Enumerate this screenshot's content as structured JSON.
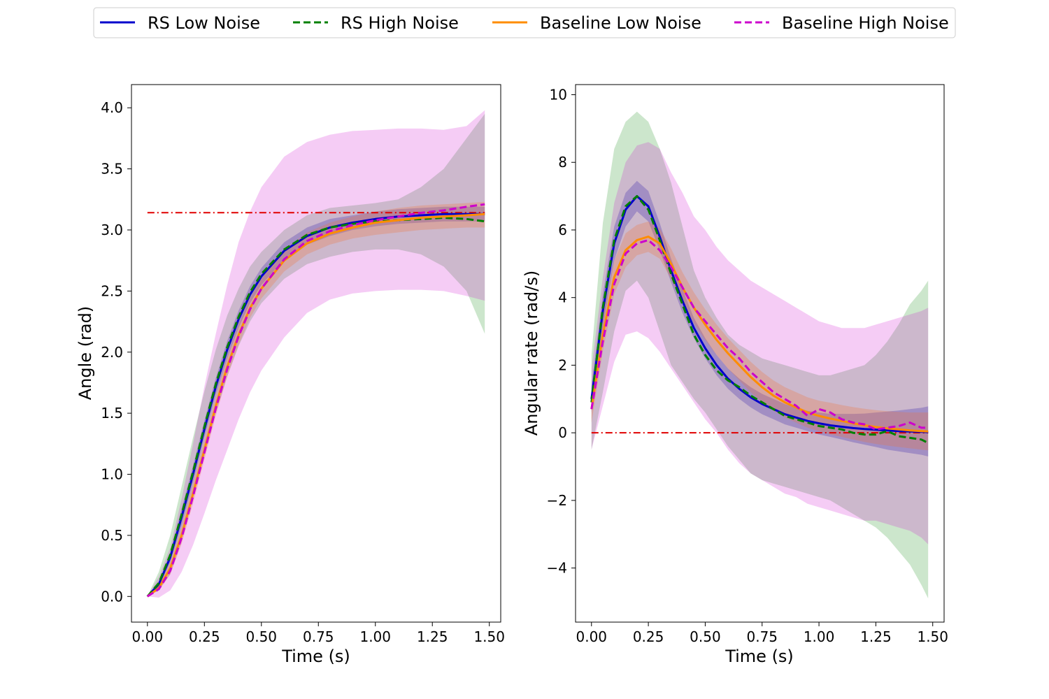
{
  "legend": {
    "placement": "top-center",
    "entries": [
      {
        "name": "RS Low Noise",
        "color": "#0000cc",
        "style": "solid"
      },
      {
        "name": "RS High Noise",
        "color": "#008000",
        "style": "dashed"
      },
      {
        "name": "Baseline Low Noise",
        "color": "#ff8c00",
        "style": "solid"
      },
      {
        "name": "Baseline High Noise",
        "color": "#cc00cc",
        "style": "dashed"
      }
    ]
  },
  "chart_data": [
    {
      "type": "line",
      "xlabel": "Time (s)",
      "ylabel": "Angle (rad)",
      "xlim": [
        -0.07,
        1.55
      ],
      "ylim": [
        -0.21,
        4.19
      ],
      "xticks": [
        0.0,
        0.25,
        0.5,
        0.75,
        1.0,
        1.25,
        1.5
      ],
      "xtick_labels": [
        "0.00",
        "0.25",
        "0.50",
        "0.75",
        "1.00",
        "1.25",
        "1.50"
      ],
      "yticks": [
        0.0,
        0.5,
        1.0,
        1.5,
        2.0,
        2.5,
        3.0,
        3.5,
        4.0
      ],
      "ytick_labels": [
        "0.0",
        "0.5",
        "1.0",
        "1.5",
        "2.0",
        "2.5",
        "3.0",
        "3.5",
        "4.0"
      ],
      "grid": false,
      "reference": {
        "y": 3.14159,
        "color": "#e00000",
        "style": "dashdot"
      },
      "x": [
        0.0,
        0.05,
        0.1,
        0.15,
        0.2,
        0.25,
        0.3,
        0.35,
        0.4,
        0.45,
        0.5,
        0.6,
        0.7,
        0.8,
        0.9,
        1.0,
        1.1,
        1.2,
        1.3,
        1.4,
        1.48
      ],
      "series": [
        {
          "name": "RS Low Noise",
          "color": "#0000cc",
          "style": "solid",
          "values": [
            0.0,
            0.1,
            0.32,
            0.65,
            1.0,
            1.37,
            1.72,
            2.02,
            2.27,
            2.47,
            2.62,
            2.83,
            2.95,
            3.02,
            3.06,
            3.09,
            3.11,
            3.12,
            3.13,
            3.13,
            3.13
          ],
          "band": {
            "color": "#0000cc",
            "alpha": 0.25,
            "lower": [
              0.0,
              0.08,
              0.28,
              0.58,
              0.93,
              1.3,
              1.65,
              1.95,
              2.2,
              2.4,
              2.55,
              2.76,
              2.88,
              2.95,
              3.0,
              3.03,
              3.05,
              3.06,
              3.07,
              3.07,
              3.07
            ],
            "upper": [
              0.0,
              0.12,
              0.36,
              0.72,
              1.07,
              1.44,
              1.79,
              2.09,
              2.34,
              2.54,
              2.69,
              2.9,
              3.02,
              3.09,
              3.12,
              3.15,
              3.17,
              3.18,
              3.19,
              3.19,
              3.19
            ]
          }
        },
        {
          "name": "RS High Noise",
          "color": "#008000",
          "style": "dashed",
          "values": [
            0.0,
            0.11,
            0.34,
            0.67,
            1.02,
            1.39,
            1.74,
            2.04,
            2.29,
            2.49,
            2.64,
            2.84,
            2.96,
            3.02,
            3.05,
            3.07,
            3.08,
            3.09,
            3.1,
            3.09,
            3.07
          ],
          "band": {
            "color": "#008000",
            "alpha": 0.2,
            "lower": [
              0.0,
              0.05,
              0.18,
              0.45,
              0.8,
              1.15,
              1.5,
              1.8,
              2.05,
              2.25,
              2.4,
              2.6,
              2.72,
              2.78,
              2.82,
              2.84,
              2.84,
              2.8,
              2.7,
              2.5,
              2.15
            ],
            "upper": [
              0.0,
              0.2,
              0.5,
              0.9,
              1.3,
              1.68,
              2.02,
              2.3,
              2.52,
              2.7,
              2.82,
              3.0,
              3.12,
              3.18,
              3.2,
              3.22,
              3.25,
              3.35,
              3.5,
              3.75,
              3.95
            ]
          }
        },
        {
          "name": "Baseline Low Noise",
          "color": "#ff8c00",
          "style": "solid",
          "values": [
            0.0,
            0.07,
            0.23,
            0.5,
            0.84,
            1.2,
            1.56,
            1.88,
            2.14,
            2.36,
            2.52,
            2.75,
            2.89,
            2.97,
            3.02,
            3.06,
            3.08,
            3.1,
            3.11,
            3.12,
            3.13
          ],
          "band": {
            "color": "#ff8c00",
            "alpha": 0.25,
            "lower": [
              0.0,
              0.05,
              0.18,
              0.43,
              0.76,
              1.12,
              1.48,
              1.8,
              2.06,
              2.28,
              2.44,
              2.66,
              2.8,
              2.88,
              2.93,
              2.96,
              2.98,
              3.0,
              3.01,
              3.02,
              3.02
            ],
            "upper": [
              0.0,
              0.09,
              0.28,
              0.57,
              0.92,
              1.28,
              1.64,
              1.96,
              2.22,
              2.44,
              2.6,
              2.84,
              2.98,
              3.06,
              3.11,
              3.15,
              3.18,
              3.2,
              3.21,
              3.22,
              3.23
            ]
          }
        },
        {
          "name": "Baseline High Noise",
          "color": "#cc00cc",
          "style": "dashed",
          "values": [
            0.0,
            0.06,
            0.21,
            0.48,
            0.82,
            1.18,
            1.54,
            1.86,
            2.13,
            2.35,
            2.52,
            2.76,
            2.91,
            2.99,
            3.04,
            3.08,
            3.11,
            3.14,
            3.16,
            3.19,
            3.21
          ],
          "band": {
            "color": "#cc00cc",
            "alpha": 0.2,
            "lower": [
              0.0,
              -0.01,
              0.05,
              0.2,
              0.42,
              0.68,
              0.95,
              1.2,
              1.45,
              1.67,
              1.85,
              2.12,
              2.32,
              2.43,
              2.48,
              2.5,
              2.51,
              2.51,
              2.5,
              2.46,
              2.42
            ],
            "upper": [
              0.0,
              0.16,
              0.4,
              0.8,
              1.25,
              1.72,
              2.15,
              2.55,
              2.9,
              3.15,
              3.35,
              3.6,
              3.72,
              3.78,
              3.81,
              3.82,
              3.83,
              3.83,
              3.82,
              3.85,
              3.98
            ]
          }
        }
      ]
    },
    {
      "type": "line",
      "xlabel": "Time (s)",
      "ylabel": "Angular rate (rad/s)",
      "xlim": [
        -0.07,
        1.55
      ],
      "ylim": [
        -5.6,
        10.3
      ],
      "xticks": [
        0.0,
        0.25,
        0.5,
        0.75,
        1.0,
        1.25,
        1.5
      ],
      "xtick_labels": [
        "0.00",
        "0.25",
        "0.50",
        "0.75",
        "1.00",
        "1.25",
        "1.50"
      ],
      "yticks": [
        -4,
        -2,
        0,
        2,
        4,
        6,
        8,
        10
      ],
      "ytick_labels": [
        "−4",
        "−2",
        "0",
        "2",
        "4",
        "6",
        "8",
        "10"
      ],
      "grid": false,
      "reference": {
        "y": 0,
        "color": "#e00000",
        "style": "dashdot"
      },
      "x": [
        0.0,
        0.05,
        0.1,
        0.15,
        0.2,
        0.25,
        0.3,
        0.35,
        0.4,
        0.45,
        0.5,
        0.55,
        0.6,
        0.65,
        0.7,
        0.75,
        0.8,
        0.85,
        0.9,
        0.95,
        1.0,
        1.05,
        1.1,
        1.15,
        1.2,
        1.25,
        1.3,
        1.35,
        1.4,
        1.45,
        1.48
      ],
      "series": [
        {
          "name": "RS Low Noise",
          "color": "#0000cc",
          "style": "solid",
          "values": [
            1.0,
            3.6,
            5.6,
            6.6,
            7.0,
            6.7,
            5.8,
            4.8,
            3.9,
            3.1,
            2.5,
            2.0,
            1.6,
            1.3,
            1.05,
            0.85,
            0.7,
            0.55,
            0.45,
            0.35,
            0.28,
            0.22,
            0.18,
            0.14,
            0.11,
            0.09,
            0.07,
            0.05,
            0.04,
            0.03,
            0.02
          ],
          "band": {
            "color": "#0000cc",
            "alpha": 0.25,
            "lower": [
              0.6,
              3.1,
              5.1,
              6.1,
              6.55,
              6.25,
              5.4,
              4.45,
              3.55,
              2.8,
              2.2,
              1.7,
              1.3,
              1.0,
              0.75,
              0.55,
              0.4,
              0.25,
              0.15,
              0.05,
              -0.05,
              -0.12,
              -0.2,
              -0.28,
              -0.35,
              -0.42,
              -0.5,
              -0.55,
              -0.6,
              -0.65,
              -0.7
            ],
            "upper": [
              1.4,
              4.1,
              6.1,
              7.1,
              7.45,
              7.15,
              6.2,
              5.15,
              4.25,
              3.4,
              2.8,
              2.3,
              1.9,
              1.6,
              1.35,
              1.15,
              1.0,
              0.85,
              0.75,
              0.65,
              0.6,
              0.56,
              0.56,
              0.56,
              0.57,
              0.6,
              0.63,
              0.66,
              0.7,
              0.74,
              0.78
            ]
          }
        },
        {
          "name": "RS High Noise",
          "color": "#008000",
          "style": "dashed",
          "values": [
            0.9,
            3.7,
            5.7,
            6.7,
            7.0,
            6.6,
            5.7,
            4.7,
            3.8,
            2.9,
            2.3,
            1.85,
            1.55,
            1.35,
            1.1,
            0.9,
            0.7,
            0.5,
            0.4,
            0.3,
            0.2,
            0.15,
            0.1,
            0.0,
            -0.05,
            -0.05,
            0.05,
            -0.1,
            -0.15,
            -0.2,
            -0.3
          ],
          "band": {
            "color": "#008000",
            "alpha": 0.2,
            "lower": [
              -0.5,
              1.2,
              3.0,
              4.2,
              4.5,
              4.0,
              3.0,
              2.0,
              1.5,
              1.0,
              0.6,
              0.1,
              -0.4,
              -0.8,
              -1.2,
              -1.4,
              -1.5,
              -1.6,
              -1.7,
              -1.8,
              -1.9,
              -2.0,
              -2.2,
              -2.4,
              -2.6,
              -2.8,
              -3.1,
              -3.5,
              -3.9,
              -4.5,
              -4.9
            ],
            "upper": [
              2.3,
              6.2,
              8.4,
              9.2,
              9.5,
              9.2,
              8.4,
              7.4,
              6.1,
              4.8,
              4.0,
              3.4,
              2.9,
              2.6,
              2.4,
              2.2,
              2.1,
              2.0,
              1.9,
              1.8,
              1.7,
              1.7,
              1.8,
              1.9,
              2.0,
              2.3,
              2.7,
              3.2,
              3.8,
              4.2,
              4.5
            ]
          }
        },
        {
          "name": "Baseline Low Noise",
          "color": "#ff8c00",
          "style": "solid",
          "values": [
            0.7,
            2.9,
            4.6,
            5.4,
            5.7,
            5.8,
            5.6,
            5.0,
            4.3,
            3.7,
            3.2,
            2.75,
            2.35,
            2.0,
            1.65,
            1.35,
            1.1,
            0.9,
            0.75,
            0.6,
            0.5,
            0.42,
            0.35,
            0.28,
            0.22,
            0.17,
            0.13,
            0.1,
            0.07,
            0.05,
            0.04
          ],
          "band": {
            "color": "#ff8c00",
            "alpha": 0.25,
            "lower": [
              0.3,
              2.4,
              4.1,
              4.9,
              5.25,
              5.35,
              5.15,
              4.55,
              3.85,
              3.25,
              2.75,
              2.3,
              1.9,
              1.55,
              1.2,
              0.9,
              0.65,
              0.45,
              0.3,
              0.15,
              0.05,
              -0.05,
              -0.12,
              -0.2,
              -0.27,
              -0.33,
              -0.38,
              -0.42,
              -0.46,
              -0.5,
              -0.52
            ],
            "upper": [
              1.1,
              3.4,
              5.1,
              5.9,
              6.15,
              6.25,
              6.05,
              5.45,
              4.75,
              4.15,
              3.65,
              3.2,
              2.8,
              2.45,
              2.1,
              1.8,
              1.55,
              1.35,
              1.2,
              1.05,
              0.95,
              0.89,
              0.82,
              0.76,
              0.71,
              0.67,
              0.64,
              0.62,
              0.6,
              0.6,
              0.6
            ]
          }
        },
        {
          "name": "Baseline High Noise",
          "color": "#cc00cc",
          "style": "dashed",
          "values": [
            0.7,
            2.7,
            4.4,
            5.3,
            5.6,
            5.7,
            5.4,
            4.9,
            4.3,
            3.7,
            3.3,
            2.9,
            2.5,
            2.2,
            1.8,
            1.5,
            1.2,
            1.0,
            0.8,
            0.5,
            0.7,
            0.6,
            0.4,
            0.3,
            0.25,
            0.1,
            0.15,
            0.2,
            0.3,
            0.15,
            0.15
          ],
          "band": {
            "color": "#cc00cc",
            "alpha": 0.2,
            "lower": [
              -0.5,
              0.8,
              2.1,
              2.9,
              3.0,
              2.8,
              2.4,
              1.9,
              1.4,
              0.9,
              0.4,
              0.0,
              -0.5,
              -0.9,
              -1.2,
              -1.4,
              -1.6,
              -1.8,
              -1.9,
              -2.1,
              -2.2,
              -2.3,
              -2.4,
              -2.5,
              -2.6,
              -2.6,
              -2.7,
              -2.8,
              -2.9,
              -3.1,
              -3.3
            ],
            "upper": [
              1.9,
              4.6,
              6.8,
              8.0,
              8.5,
              8.6,
              8.4,
              7.7,
              7.1,
              6.4,
              6.0,
              5.5,
              5.1,
              4.8,
              4.5,
              4.3,
              4.1,
              3.9,
              3.7,
              3.5,
              3.3,
              3.2,
              3.1,
              3.1,
              3.1,
              3.2,
              3.3,
              3.4,
              3.5,
              3.6,
              3.7
            ]
          }
        }
      ]
    }
  ]
}
